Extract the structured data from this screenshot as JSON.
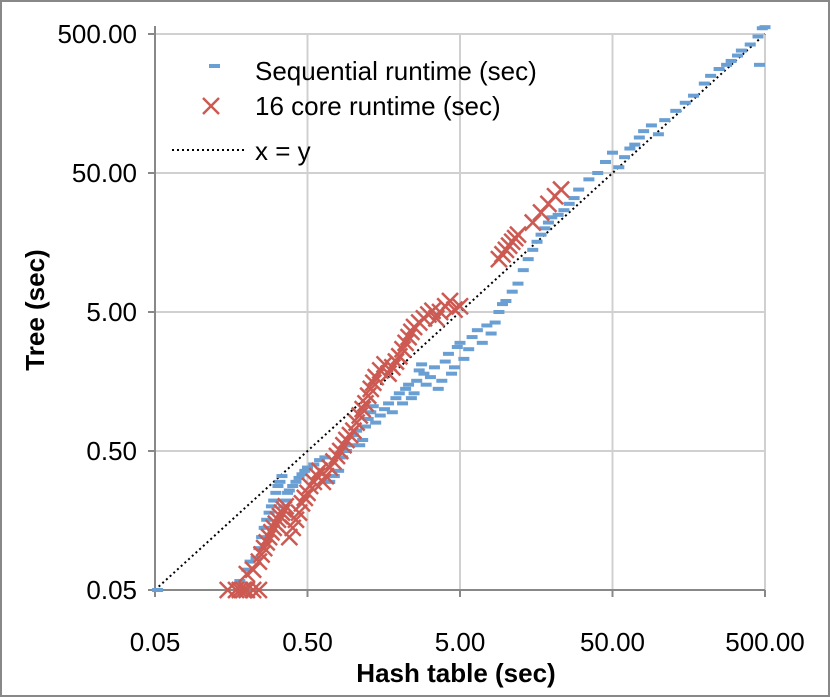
{
  "chart_data": {
    "type": "scatter",
    "title": "",
    "xlabel": "Hash table (sec)",
    "ylabel": "Tree (sec)",
    "xscale": "log",
    "yscale": "log",
    "xlim": [
      0.05,
      500
    ],
    "ylim": [
      0.05,
      500
    ],
    "x_ticks": [
      0.05,
      0.5,
      5,
      50,
      500
    ],
    "x_tick_labels": [
      "0.05",
      "0.50",
      "5.00",
      "50.00",
      "500.00"
    ],
    "y_ticks": [
      0.05,
      0.5,
      5,
      50,
      500
    ],
    "y_tick_labels": [
      "0.05",
      "0.50",
      "5.00",
      "50.00",
      "500.00"
    ],
    "grid": true,
    "legend_position": "top-left",
    "colors": {
      "sequential": "#6a9fd4",
      "parallel": "#cc5a52",
      "reference": "#000000",
      "grid": "#d0d0d0",
      "frame": "#888888"
    },
    "series": [
      {
        "name": "Sequential runtime (sec)",
        "marker": "dash",
        "points": [
          [
            0.052,
            0.05
          ],
          [
            0.18,
            0.058
          ],
          [
            0.2,
            0.07
          ],
          [
            0.21,
            0.08
          ],
          [
            0.23,
            0.085
          ],
          [
            0.24,
            0.1
          ],
          [
            0.25,
            0.12
          ],
          [
            0.26,
            0.14
          ],
          [
            0.27,
            0.16
          ],
          [
            0.28,
            0.18
          ],
          [
            0.29,
            0.2
          ],
          [
            0.3,
            0.22
          ],
          [
            0.31,
            0.25
          ],
          [
            0.32,
            0.28
          ],
          [
            0.33,
            0.3
          ],
          [
            0.34,
            0.33
          ],
          [
            0.35,
            0.2
          ],
          [
            0.36,
            0.22
          ],
          [
            0.37,
            0.25
          ],
          [
            0.38,
            0.26
          ],
          [
            0.4,
            0.28
          ],
          [
            0.42,
            0.3
          ],
          [
            0.44,
            0.32
          ],
          [
            0.46,
            0.34
          ],
          [
            0.48,
            0.36
          ],
          [
            0.5,
            0.38
          ],
          [
            0.55,
            0.4
          ],
          [
            0.6,
            0.43
          ],
          [
            0.65,
            0.45
          ],
          [
            0.7,
            0.3
          ],
          [
            0.75,
            0.33
          ],
          [
            0.8,
            0.36
          ],
          [
            0.85,
            0.45
          ],
          [
            0.9,
            0.5
          ],
          [
            0.95,
            0.55
          ],
          [
            1.0,
            0.65
          ],
          [
            1.05,
            0.7
          ],
          [
            1.1,
            0.55
          ],
          [
            1.15,
            0.6
          ],
          [
            1.2,
            0.75
          ],
          [
            1.25,
            0.85
          ],
          [
            1.3,
            0.95
          ],
          [
            1.35,
            1.05
          ],
          [
            1.4,
            0.8
          ],
          [
            1.5,
            0.9
          ],
          [
            1.6,
            1.0
          ],
          [
            1.7,
            1.1
          ],
          [
            1.8,
            0.95
          ],
          [
            1.9,
            1.2
          ],
          [
            2.0,
            1.3
          ],
          [
            2.1,
            1.1
          ],
          [
            2.2,
            1.4
          ],
          [
            2.3,
            1.5
          ],
          [
            2.4,
            1.2
          ],
          [
            2.5,
            1.3
          ],
          [
            2.6,
            1.6
          ],
          [
            2.7,
            1.9
          ],
          [
            2.8,
            2.1
          ],
          [
            2.9,
            1.8
          ],
          [
            3.0,
            1.5
          ],
          [
            3.2,
            1.7
          ],
          [
            3.4,
            2.0
          ],
          [
            3.6,
            1.4
          ],
          [
            3.8,
            1.6
          ],
          [
            4.0,
            2.2
          ],
          [
            4.2,
            2.5
          ],
          [
            4.4,
            1.8
          ],
          [
            4.6,
            2.0
          ],
          [
            4.8,
            2.8
          ],
          [
            5.0,
            3.0
          ],
          [
            5.3,
            2.3
          ],
          [
            5.7,
            2.7
          ],
          [
            6.0,
            3.3
          ],
          [
            6.5,
            3.7
          ],
          [
            7.0,
            3.0
          ],
          [
            7.5,
            4.0
          ],
          [
            8.0,
            3.5
          ],
          [
            8.5,
            4.2
          ],
          [
            9.0,
            5.0
          ],
          [
            9.5,
            5.7
          ],
          [
            10,
            6.0
          ],
          [
            11,
            7.0
          ],
          [
            12,
            8.0
          ],
          [
            13,
            10
          ],
          [
            14,
            12
          ],
          [
            15,
            14
          ],
          [
            16,
            16
          ],
          [
            17,
            18
          ],
          [
            18,
            20
          ],
          [
            19,
            22
          ],
          [
            20,
            24
          ],
          [
            22,
            25
          ],
          [
            24,
            27
          ],
          [
            26,
            30
          ],
          [
            28,
            33
          ],
          [
            30,
            38
          ],
          [
            35,
            45
          ],
          [
            40,
            50
          ],
          [
            45,
            60
          ],
          [
            50,
            70
          ],
          [
            55,
            55
          ],
          [
            60,
            65
          ],
          [
            65,
            75
          ],
          [
            70,
            80
          ],
          [
            75,
            90
          ],
          [
            80,
            100
          ],
          [
            90,
            110
          ],
          [
            100,
            95
          ],
          [
            110,
            120
          ],
          [
            130,
            140
          ],
          [
            150,
            160
          ],
          [
            170,
            180
          ],
          [
            200,
            220
          ],
          [
            220,
            250
          ],
          [
            250,
            280
          ],
          [
            280,
            300
          ],
          [
            300,
            320
          ],
          [
            330,
            350
          ],
          [
            350,
            380
          ],
          [
            400,
            420
          ],
          [
            450,
            480
          ],
          [
            480,
            550
          ],
          [
            500,
            560
          ],
          [
            460,
            300
          ]
        ]
      },
      {
        "name": "16 core runtime (sec)",
        "marker": "x",
        "points": [
          [
            0.15,
            0.05
          ],
          [
            0.17,
            0.05
          ],
          [
            0.18,
            0.05
          ],
          [
            0.19,
            0.05
          ],
          [
            0.2,
            0.05
          ],
          [
            0.22,
            0.05
          ],
          [
            0.24,
            0.05
          ],
          [
            0.2,
            0.065
          ],
          [
            0.22,
            0.07
          ],
          [
            0.24,
            0.08
          ],
          [
            0.25,
            0.09
          ],
          [
            0.26,
            0.1
          ],
          [
            0.27,
            0.11
          ],
          [
            0.28,
            0.12
          ],
          [
            0.29,
            0.13
          ],
          [
            0.3,
            0.14
          ],
          [
            0.31,
            0.15
          ],
          [
            0.32,
            0.16
          ],
          [
            0.33,
            0.17
          ],
          [
            0.34,
            0.18
          ],
          [
            0.35,
            0.19
          ],
          [
            0.36,
            0.2
          ],
          [
            0.38,
            0.12
          ],
          [
            0.4,
            0.14
          ],
          [
            0.42,
            0.16
          ],
          [
            0.44,
            0.18
          ],
          [
            0.46,
            0.21
          ],
          [
            0.48,
            0.23
          ],
          [
            0.5,
            0.25
          ],
          [
            0.52,
            0.28
          ],
          [
            0.55,
            0.3
          ],
          [
            0.58,
            0.33
          ],
          [
            0.6,
            0.36
          ],
          [
            0.63,
            0.3
          ],
          [
            0.66,
            0.33
          ],
          [
            0.7,
            0.38
          ],
          [
            0.74,
            0.42
          ],
          [
            0.78,
            0.46
          ],
          [
            0.82,
            0.5
          ],
          [
            0.86,
            0.55
          ],
          [
            0.9,
            0.6
          ],
          [
            0.95,
            0.65
          ],
          [
            1.0,
            0.7
          ],
          [
            1.05,
            0.8
          ],
          [
            1.1,
            0.9
          ],
          [
            1.15,
            1.0
          ],
          [
            1.2,
            1.1
          ],
          [
            1.25,
            1.25
          ],
          [
            1.3,
            1.4
          ],
          [
            1.35,
            1.55
          ],
          [
            1.4,
            1.7
          ],
          [
            1.5,
            1.9
          ],
          [
            1.6,
            2.1
          ],
          [
            1.7,
            1.8
          ],
          [
            1.8,
            2.0
          ],
          [
            1.9,
            2.2
          ],
          [
            2.0,
            2.4
          ],
          [
            2.1,
            2.7
          ],
          [
            2.2,
            3.0
          ],
          [
            2.3,
            3.3
          ],
          [
            2.4,
            3.6
          ],
          [
            2.5,
            3.9
          ],
          [
            2.7,
            4.2
          ],
          [
            2.9,
            4.5
          ],
          [
            3.1,
            4.8
          ],
          [
            3.3,
            5.1
          ],
          [
            3.5,
            4.5
          ],
          [
            3.7,
            5.0
          ],
          [
            4.0,
            5.5
          ],
          [
            4.3,
            6.0
          ],
          [
            4.6,
            5.2
          ],
          [
            5.0,
            5.5
          ],
          [
            9.0,
            12
          ],
          [
            9.5,
            13
          ],
          [
            10,
            14
          ],
          [
            10.5,
            15
          ],
          [
            11,
            16
          ],
          [
            11.5,
            17
          ],
          [
            12,
            18
          ],
          [
            15,
            22
          ],
          [
            17,
            26
          ],
          [
            19,
            30
          ],
          [
            21,
            34
          ],
          [
            23,
            38
          ]
        ]
      },
      {
        "name": "x = y",
        "marker": "dotted-line",
        "points": [
          [
            0.05,
            0.05
          ],
          [
            500,
            500
          ]
        ]
      }
    ]
  }
}
